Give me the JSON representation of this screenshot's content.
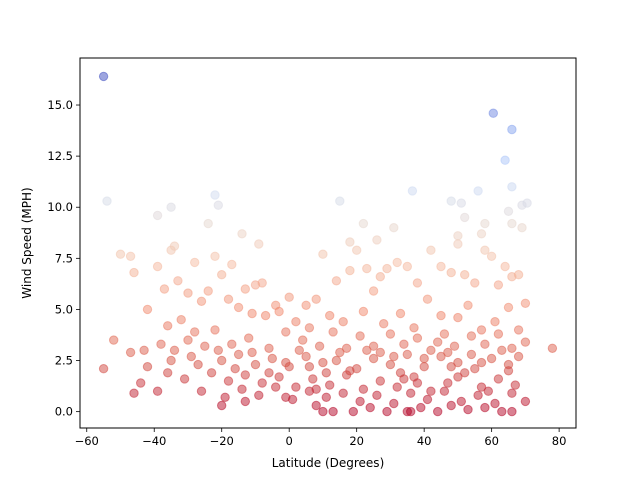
{
  "chart_data": {
    "type": "scatter",
    "title": "",
    "xlabel": "Latitude (Degrees)",
    "ylabel": "Wind Speed (MPH)",
    "xlim": [
      -62,
      85
    ],
    "ylim": [
      -0.8,
      17.3
    ],
    "xticks": [
      -60,
      -40,
      -20,
      0,
      20,
      40,
      60,
      80
    ],
    "yticks": [
      0.0,
      2.5,
      5.0,
      7.5,
      10.0,
      12.5,
      15.0
    ],
    "xtick_labels": [
      "−60",
      "−40",
      "−20",
      "0",
      "20",
      "40",
      "60",
      "80"
    ],
    "ytick_labels": [
      "0.0",
      "2.5",
      "5.0",
      "7.5",
      "10.0",
      "12.5",
      "15.0"
    ],
    "grid": false,
    "legend": "none",
    "colormap": "coolwarm_r",
    "color_encodes": "y",
    "marker_alpha": 0.5,
    "points": [
      [
        -55.0,
        16.4
      ],
      [
        60.5,
        14.6
      ],
      [
        66.0,
        13.8
      ],
      [
        64.0,
        12.3
      ],
      [
        66.0,
        11.0
      ],
      [
        -54.0,
        10.3
      ],
      [
        -39.0,
        9.6
      ],
      [
        -35.0,
        10.0
      ],
      [
        -22.0,
        10.6
      ],
      [
        -21.0,
        10.1
      ],
      [
        -24.0,
        9.2
      ],
      [
        15.0,
        10.3
      ],
      [
        22.0,
        9.2
      ],
      [
        36.5,
        10.8
      ],
      [
        48.0,
        10.3
      ],
      [
        51.0,
        10.2
      ],
      [
        56.0,
        10.8
      ],
      [
        52.0,
        9.5
      ],
      [
        58.0,
        9.2
      ],
      [
        65.0,
        9.8
      ],
      [
        66.0,
        9.2
      ],
      [
        69.0,
        10.1
      ],
      [
        70.5,
        10.2
      ],
      [
        69.0,
        9.0
      ],
      [
        31.0,
        9.0
      ],
      [
        57.0,
        8.7
      ],
      [
        50.0,
        8.6
      ],
      [
        26.0,
        8.4
      ],
      [
        -14.0,
        8.7
      ],
      [
        -9.0,
        8.2
      ],
      [
        -50.0,
        7.7
      ],
      [
        -47.0,
        7.6
      ],
      [
        -46.0,
        6.8
      ],
      [
        -39.0,
        7.1
      ],
      [
        -35.0,
        7.9
      ],
      [
        -34.0,
        8.1
      ],
      [
        -28.0,
        7.3
      ],
      [
        -22.0,
        7.6
      ],
      [
        -20.0,
        6.7
      ],
      [
        -17.0,
        7.2
      ],
      [
        -13.0,
        6.0
      ],
      [
        -10.0,
        6.2
      ],
      [
        -8.0,
        6.3
      ],
      [
        -4.0,
        5.2
      ],
      [
        0.0,
        5.6
      ],
      [
        5.0,
        5.2
      ],
      [
        8.0,
        5.5
      ],
      [
        10.0,
        7.7
      ],
      [
        14.0,
        6.4
      ],
      [
        18.0,
        6.9
      ],
      [
        18.0,
        8.3
      ],
      [
        20.0,
        7.9
      ],
      [
        23.0,
        7.0
      ],
      [
        25.0,
        5.9
      ],
      [
        27.0,
        6.6
      ],
      [
        29.0,
        7.0
      ],
      [
        32.0,
        7.3
      ],
      [
        35.0,
        7.1
      ],
      [
        38.0,
        6.3
      ],
      [
        42.0,
        7.9
      ],
      [
        45.0,
        7.1
      ],
      [
        48.0,
        6.8
      ],
      [
        50.0,
        8.2
      ],
      [
        52.0,
        6.7
      ],
      [
        55.0,
        6.3
      ],
      [
        58.0,
        7.9
      ],
      [
        60.0,
        7.6
      ],
      [
        62.0,
        6.2
      ],
      [
        64.0,
        7.1
      ],
      [
        66.0,
        6.6
      ],
      [
        68.0,
        6.7
      ],
      [
        70.0,
        5.3
      ],
      [
        -37.0,
        6.0
      ],
      [
        -33.0,
        6.4
      ],
      [
        -30.0,
        5.8
      ],
      [
        -26.0,
        5.4
      ],
      [
        -24.0,
        5.9
      ],
      [
        -18.0,
        5.5
      ],
      [
        -15.0,
        5.1
      ],
      [
        -11.0,
        4.8
      ],
      [
        -7.0,
        4.7
      ],
      [
        -3.0,
        4.9
      ],
      [
        2.0,
        4.4
      ],
      [
        6.0,
        4.1
      ],
      [
        12.0,
        4.7
      ],
      [
        16.0,
        4.4
      ],
      [
        22.0,
        4.9
      ],
      [
        28.0,
        4.3
      ],
      [
        33.0,
        4.8
      ],
      [
        37.0,
        4.1
      ],
      [
        41.0,
        5.5
      ],
      [
        45.0,
        4.7
      ],
      [
        50.0,
        4.6
      ],
      [
        53.0,
        5.2
      ],
      [
        57.0,
        4.0
      ],
      [
        61.0,
        4.4
      ],
      [
        65.0,
        5.1
      ],
      [
        68.0,
        4.0
      ],
      [
        -42.0,
        5.0
      ],
      [
        -36.0,
        4.2
      ],
      [
        -32.0,
        4.5
      ],
      [
        -28.0,
        3.9
      ],
      [
        -22.0,
        4.0
      ],
      [
        -17.0,
        3.3
      ],
      [
        -12.0,
        3.6
      ],
      [
        -6.0,
        3.1
      ],
      [
        -1.0,
        3.9
      ],
      [
        4.0,
        3.5
      ],
      [
        9.0,
        3.2
      ],
      [
        13.0,
        3.9
      ],
      [
        17.0,
        3.1
      ],
      [
        21.0,
        3.7
      ],
      [
        25.0,
        3.2
      ],
      [
        30.0,
        3.8
      ],
      [
        34.0,
        3.3
      ],
      [
        38.0,
        3.6
      ],
      [
        42.0,
        3.0
      ],
      [
        46.0,
        3.8
      ],
      [
        49.0,
        3.2
      ],
      [
        54.0,
        3.7
      ],
      [
        58.0,
        3.3
      ],
      [
        62.0,
        3.8
      ],
      [
        66.0,
        3.1
      ],
      [
        70.0,
        3.4
      ],
      [
        78.0,
        3.1
      ],
      [
        -52.0,
        3.5
      ],
      [
        -47.0,
        2.9
      ],
      [
        -43.0,
        3.0
      ],
      [
        -38.0,
        3.3
      ],
      [
        -34.0,
        3.0
      ],
      [
        -29.0,
        2.7
      ],
      [
        -25.0,
        3.2
      ],
      [
        -20.0,
        2.5
      ],
      [
        -15.0,
        2.8
      ],
      [
        -10.0,
        2.3
      ],
      [
        -5.0,
        2.6
      ],
      [
        0.0,
        2.2
      ],
      [
        5.0,
        2.7
      ],
      [
        10.0,
        2.4
      ],
      [
        15.0,
        2.9
      ],
      [
        20.0,
        2.1
      ],
      [
        25.0,
        2.6
      ],
      [
        30.0,
        2.3
      ],
      [
        35.0,
        2.8
      ],
      [
        40.0,
        2.2
      ],
      [
        45.0,
        2.7
      ],
      [
        50.0,
        2.4
      ],
      [
        55.0,
        2.1
      ],
      [
        60.0,
        2.6
      ],
      [
        65.0,
        2.3
      ],
      [
        68.0,
        2.7
      ],
      [
        -55.0,
        2.1
      ],
      [
        -42.0,
        2.2
      ],
      [
        -36.0,
        1.9
      ],
      [
        -31.0,
        1.6
      ],
      [
        -23.0,
        1.9
      ],
      [
        -18.0,
        1.5
      ],
      [
        -13.0,
        1.8
      ],
      [
        -8.0,
        1.4
      ],
      [
        -3.0,
        1.7
      ],
      [
        2.0,
        1.2
      ],
      [
        7.0,
        1.6
      ],
      [
        12.0,
        1.3
      ],
      [
        17.0,
        1.8
      ],
      [
        22.0,
        1.1
      ],
      [
        27.0,
        1.5
      ],
      [
        32.0,
        1.2
      ],
      [
        37.0,
        1.7
      ],
      [
        42.0,
        1.0
      ],
      [
        47.0,
        1.4
      ],
      [
        52.0,
        1.9
      ],
      [
        57.0,
        1.2
      ],
      [
        62.0,
        1.6
      ],
      [
        67.0,
        1.3
      ],
      [
        -44.0,
        1.4
      ],
      [
        -39.0,
        1.0
      ],
      [
        -26.0,
        1.0
      ],
      [
        -19.0,
        0.7
      ],
      [
        -14.0,
        1.1
      ],
      [
        -9.0,
        0.8
      ],
      [
        -4.0,
        1.2
      ],
      [
        1.0,
        0.6
      ],
      [
        6.0,
        1.0
      ],
      [
        11.0,
        0.7
      ],
      [
        16.0,
        0.9
      ],
      [
        21.0,
        0.5
      ],
      [
        26.0,
        0.8
      ],
      [
        31.0,
        0.4
      ],
      [
        36.0,
        0.9
      ],
      [
        41.0,
        0.6
      ],
      [
        46.0,
        1.0
      ],
      [
        51.0,
        0.5
      ],
      [
        56.0,
        0.8
      ],
      [
        61.0,
        0.4
      ],
      [
        66.0,
        0.9
      ],
      [
        70.0,
        0.5
      ],
      [
        -46.0,
        0.9
      ],
      [
        -20.0,
        0.3
      ],
      [
        -13.0,
        0.5
      ],
      [
        -1.0,
        0.7
      ],
      [
        8.0,
        0.3
      ],
      [
        13.0,
        0.0
      ],
      [
        19.0,
        0.0
      ],
      [
        24.0,
        0.2
      ],
      [
        29.0,
        0.0
      ],
      [
        35.0,
        0.0
      ],
      [
        39.0,
        0.2
      ],
      [
        44.0,
        0.0
      ],
      [
        48.0,
        0.3
      ],
      [
        53.0,
        0.1
      ],
      [
        58.0,
        0.2
      ],
      [
        63.0,
        0.0
      ],
      [
        66.0,
        0.0
      ],
      [
        10.0,
        0.0
      ],
      [
        36.0,
        0.0
      ],
      [
        -30.0,
        3.5
      ],
      [
        -11.0,
        2.9
      ],
      [
        3.0,
        3.0
      ],
      [
        18.0,
        2.0
      ],
      [
        33.0,
        1.9
      ],
      [
        48.0,
        2.2
      ],
      [
        63.0,
        3.0
      ],
      [
        -6.0,
        1.9
      ],
      [
        27.0,
        2.9
      ],
      [
        44.0,
        3.4
      ],
      [
        59.0,
        1.0
      ],
      [
        -27.0,
        2.3
      ],
      [
        11.0,
        1.9
      ],
      [
        38.0,
        1.4
      ],
      [
        54.0,
        2.8
      ],
      [
        -16.0,
        2.1
      ],
      [
        23.0,
        3.0
      ],
      [
        50.0,
        1.7
      ],
      [
        6.0,
        2.2
      ],
      [
        40.0,
        2.6
      ],
      [
        -21.0,
        3.0
      ],
      [
        31.0,
        2.7
      ],
      [
        65.0,
        2.0
      ],
      [
        -1.0,
        2.4
      ],
      [
        14.0,
        2.5
      ],
      [
        47.0,
        2.9
      ],
      [
        -35.0,
        2.5
      ],
      [
        8.0,
        1.1
      ],
      [
        34.0,
        1.6
      ],
      [
        57.0,
        2.4
      ]
    ]
  }
}
